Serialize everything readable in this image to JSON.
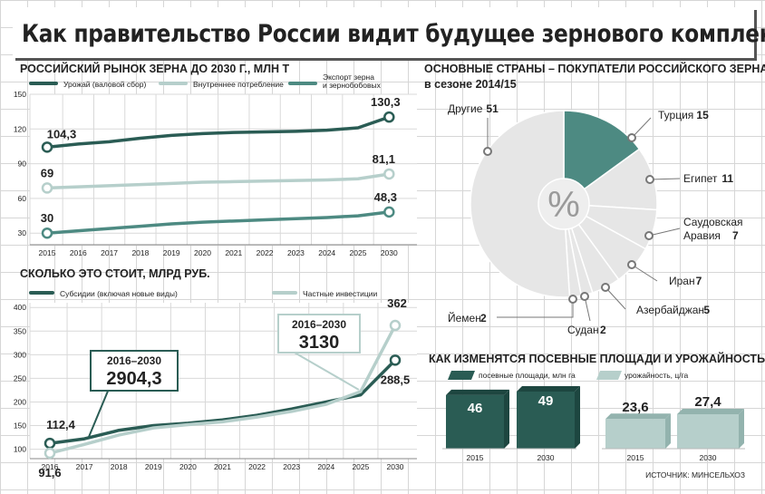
{
  "title": "Как правительство России видит будущее зернового комплекса",
  "source": "ИСТОЧНИК: МИНСЕЛЬХОЗ",
  "colors": {
    "dark": "#2a5c54",
    "light": "#b6cfcb",
    "mid": "#4d8a82",
    "pie_bg": "#e6e6e6"
  },
  "chart_data": [
    {
      "type": "line",
      "title": "РОССИЙСКИЙ РЫНОК ЗЕРНА ДО 2030 Г., МЛН Т",
      "categories": [
        "2015",
        "2016",
        "2017",
        "2018",
        "2019",
        "2020",
        "2021",
        "2022",
        "2023",
        "2024",
        "2025",
        "2030"
      ],
      "yticks": [
        30,
        60,
        90,
        120,
        150
      ],
      "ylim": [
        20,
        150
      ],
      "series": [
        {
          "name": "Урожай (валовой сбор)",
          "color": "#2a5c54",
          "values": [
            104.3,
            107,
            109,
            112,
            114.5,
            116,
            117,
            117.5,
            118,
            119,
            121,
            130.3
          ],
          "labels": [
            "104,3",
            "130,3"
          ]
        },
        {
          "name": "Внутреннее потребление",
          "color": "#b6cfcb",
          "values": [
            69,
            70,
            71,
            72,
            73,
            74,
            74.5,
            75,
            75.5,
            76,
            77,
            81.1
          ],
          "labels": [
            "69",
            "81,1"
          ]
        },
        {
          "name": "Экспорт зерна и зернобобовых",
          "legend_lines": [
            "Экспорт зерна",
            "и зернобобовых"
          ],
          "color": "#4d8a82",
          "values": [
            30,
            32,
            34,
            36,
            38,
            39.5,
            40.5,
            41.5,
            42.5,
            43.5,
            45,
            48.3
          ],
          "labels": [
            "30",
            "48,3"
          ]
        }
      ]
    },
    {
      "type": "line",
      "title": "СКОЛЬКО ЭТО СТОИТ, МЛРД РУБ.",
      "categories": [
        "2016",
        "2017",
        "2018",
        "2019",
        "2020",
        "2021",
        "2022",
        "2023",
        "2024",
        "2025",
        "2030"
      ],
      "yticks": [
        100,
        150,
        200,
        250,
        300,
        350,
        400
      ],
      "ylim": [
        80,
        410
      ],
      "series": [
        {
          "name": "Субсидии (включая новые виды)",
          "color": "#2a5c54",
          "values": [
            112.4,
            122,
            140,
            150,
            155,
            162,
            172,
            185,
            200,
            215,
            288.5
          ],
          "labels": [
            "112,4",
            "288,5"
          ],
          "callout": {
            "period": "2016–2030",
            "total": "2904,3"
          }
        },
        {
          "name": "Частные инвестиции",
          "color": "#b6cfcb",
          "values": [
            91.6,
            110,
            130,
            145,
            152,
            158,
            168,
            180,
            195,
            222,
            362
          ],
          "labels": [
            "91,6",
            "362"
          ],
          "callout": {
            "period": "2016–2030",
            "total": "3130"
          }
        }
      ]
    },
    {
      "type": "pie",
      "title": "ОСНОВНЫЕ СТРАНЫ – ПОКУПАТЕЛИ РОССИЙСКОГО ЗЕРНА",
      "subtitle": "в сезоне 2014/15",
      "center_label": "%",
      "slices": [
        {
          "name": "Турция",
          "value": 15,
          "label": "15"
        },
        {
          "name": "Египет",
          "value": 11,
          "label": "11"
        },
        {
          "name": "Саудовская Аравия",
          "name_lines": [
            "Саудовская",
            "Аравия"
          ],
          "value": 7,
          "label": "7"
        },
        {
          "name": "Иран",
          "value": 7,
          "label": "7"
        },
        {
          "name": "Азербайджан",
          "value": 5,
          "label": "5"
        },
        {
          "name": "Судан",
          "value": 2,
          "label": "2"
        },
        {
          "name": "Йемен",
          "value": 2,
          "label": "2"
        },
        {
          "name": "Другие",
          "value": 51,
          "label": "51"
        }
      ]
    },
    {
      "type": "bar",
      "title": "КАК ИЗМЕНЯТСЯ  ПОСЕВНЫЕ ПЛОЩАДИ И УРОЖАЙНОСТЬ",
      "categories": [
        "2015",
        "2030"
      ],
      "series": [
        {
          "name": "посевные площади, млн га",
          "color": "#2a5c54",
          "values": [
            46,
            49
          ],
          "labels": [
            "46",
            "49"
          ]
        },
        {
          "name": "урожайность, ц/га",
          "color": "#b6cfcb",
          "values": [
            23.6,
            27.4
          ],
          "labels": [
            "23,6",
            "27,4"
          ]
        }
      ]
    }
  ]
}
